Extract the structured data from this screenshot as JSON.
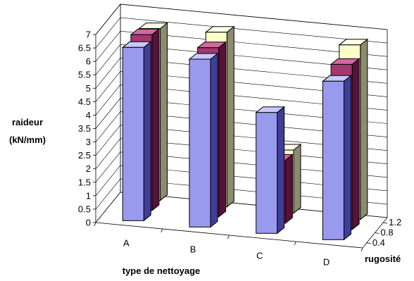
{
  "chart_data": {
    "type": "bar",
    "subtype": "3d-column-clustered-depth",
    "title": "",
    "ylabel_lines": [
      "raideur",
      "(kN/mm)"
    ],
    "xlabel": "type de nettoyage",
    "zlabel": "rugosité",
    "categories": [
      "A",
      "B",
      "C",
      "D"
    ],
    "y_ticks": [
      "0",
      "0.5",
      "1",
      "1.5",
      "2",
      "2.5",
      "3",
      "3.5",
      "4",
      "4.5",
      "5",
      "5.5",
      "6",
      "6.5",
      "7"
    ],
    "ylim": [
      0,
      7
    ],
    "depth_ticks": [
      "0.4",
      "0.8",
      "1.2"
    ],
    "series": [
      {
        "depth": "0.4",
        "values": [
          6.45,
          6.25,
          4.5,
          5.9
        ],
        "colors": {
          "front": "#9999ee",
          "side": "#3f3f99",
          "top": "#c9c9ff"
        }
      },
      {
        "depth": "0.8",
        "values": [
          6.55,
          6.3,
          2.35,
          6.15
        ],
        "colors": {
          "front": "#a33770",
          "side": "#561238",
          "top": "#d069a1"
        }
      },
      {
        "depth": "1.2",
        "values": [
          6.4,
          6.5,
          2.35,
          6.5
        ],
        "colors": {
          "front": "#ffffcc",
          "side": "#8c8c6e",
          "top": "#ffffea"
        }
      }
    ],
    "grid": true,
    "legend": "none"
  }
}
